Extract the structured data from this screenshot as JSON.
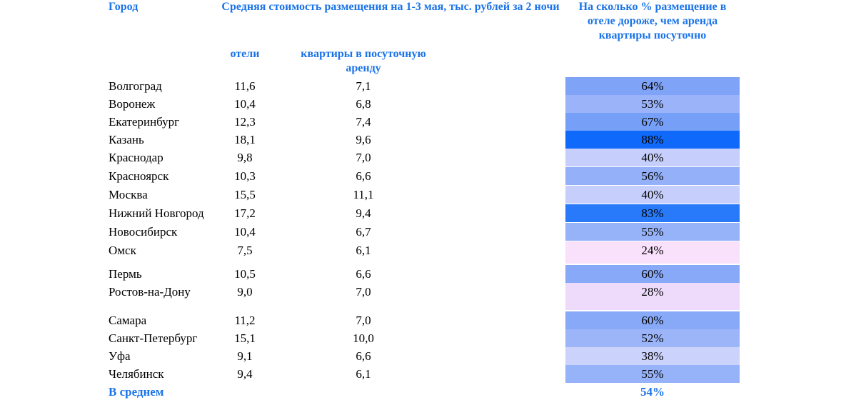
{
  "header": {
    "city": "Город",
    "avg_cost": "Средняя стоимость размещения на 1-3 мая, тыс. рублей за 2 ночи",
    "pct": "На сколько % размещение в отеле дороже, чем аренда квартиры посуточно",
    "hotels": "отели",
    "apartments": "квартиры в посуточную аренду"
  },
  "rows": [
    {
      "city": "Волгоград",
      "hotel": "11,6",
      "apt": "7,1",
      "pct": "64%",
      "color": "#7fa3f7"
    },
    {
      "city": "Воронеж",
      "hotel": "10,4",
      "apt": "6,8",
      "pct": "53%",
      "color": "#9ab3f9"
    },
    {
      "city": "Екатеринбург",
      "hotel": "12,3",
      "apt": "7,4",
      "pct": "67%",
      "color": "#76a0f8"
    },
    {
      "city": "Казань",
      "hotel": "18,1",
      "apt": "9,6",
      "pct": "88%",
      "color": "#0f6afc"
    },
    {
      "city": "Краснодар",
      "hotel": "9,8",
      "apt": "7,0",
      "pct": "40%",
      "color": "#c6cefb"
    },
    {
      "city": "Красноярск",
      "hotel": "10,3",
      "apt": "6,6",
      "pct": "56%",
      "color": "#93b0f8"
    },
    {
      "city": "Москва",
      "hotel": "15,5",
      "apt": "11,1",
      "pct": "40%",
      "color": "#c6cefb"
    },
    {
      "city": "Нижний Новгород",
      "hotel": "17,2",
      "apt": "9,4",
      "pct": "83%",
      "color": "#2979fb"
    },
    {
      "city": "Новосибирск",
      "hotel": "10,4",
      "apt": "6,7",
      "pct": "55%",
      "color": "#96b2f8"
    },
    {
      "city": "Омск",
      "hotel": "7,5",
      "apt": "6,1",
      "pct": "24%",
      "color": "#f9e0fb"
    },
    {
      "city": "Пермь",
      "hotel": "10,5",
      "apt": "6,6",
      "pct": "60%",
      "color": "#88a9f8"
    },
    {
      "city": "Ростов-на-Дону",
      "hotel": "9,0",
      "apt": "7,0",
      "pct": "28%",
      "color": "#eedbfb"
    },
    {
      "city": "Самара",
      "hotel": "11,2",
      "apt": "7,0",
      "pct": "60%",
      "color": "#88a9f8"
    },
    {
      "city": "Санкт-Петербург",
      "hotel": "15,1",
      "apt": "10,0",
      "pct": "52%",
      "color": "#9cb5f9"
    },
    {
      "city": "Уфа",
      "hotel": "9,1",
      "apt": "6,6",
      "pct": "38%",
      "color": "#cbd2fb"
    },
    {
      "city": "Челябинск",
      "hotel": "9,4",
      "apt": "6,1",
      "pct": "55%",
      "color": "#96b2f8"
    }
  ],
  "average": {
    "label": "В среднем",
    "pct": "54%"
  }
}
